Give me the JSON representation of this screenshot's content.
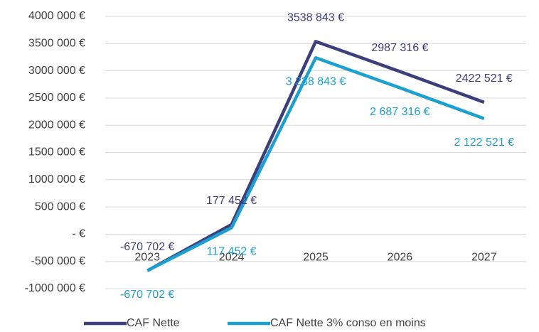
{
  "chart_data": {
    "type": "line",
    "categories": [
      "2023",
      "2024",
      "2025",
      "2026",
      "2027"
    ],
    "series": [
      {
        "name": "CAF Nette",
        "color": "#3c3f7c",
        "values": [
          -670702,
          177452,
          3538843,
          2987316,
          2422521
        ],
        "value_labels": [
          "-670 702 €",
          "177 452 €",
          "3538 843 €",
          "2987 316 €",
          "2422 521 €"
        ]
      },
      {
        "name": "CAF Nette 3% conso en moins",
        "color": "#1ba0cf",
        "values": [
          -670702,
          117452,
          3238843,
          2687316,
          2122521
        ],
        "value_labels": [
          "-670 702 €",
          "117 452 €",
          "3 238 843 €",
          "2 687 316 €",
          "2 122 521 €"
        ]
      }
    ],
    "ylim": [
      -1000000,
      4000000
    ],
    "yticks": [
      {
        "value": -1000000,
        "label": "-1000 000 €"
      },
      {
        "value": -500000,
        "label": "-500 000 €"
      },
      {
        "value": 0,
        "label": "- €"
      },
      {
        "value": 500000,
        "label": "500 000 €"
      },
      {
        "value": 1000000,
        "label": "1000 000 €"
      },
      {
        "value": 1500000,
        "label": "1500 000 €"
      },
      {
        "value": 2000000,
        "label": "2000 000 €"
      },
      {
        "value": 2500000,
        "label": "2500 000 €"
      },
      {
        "value": 3000000,
        "label": "3000 000 €"
      },
      {
        "value": 3500000,
        "label": "3500 000 €"
      },
      {
        "value": 4000000,
        "label": "4000 000 €"
      }
    ],
    "grid": true,
    "legend": "bottom"
  }
}
